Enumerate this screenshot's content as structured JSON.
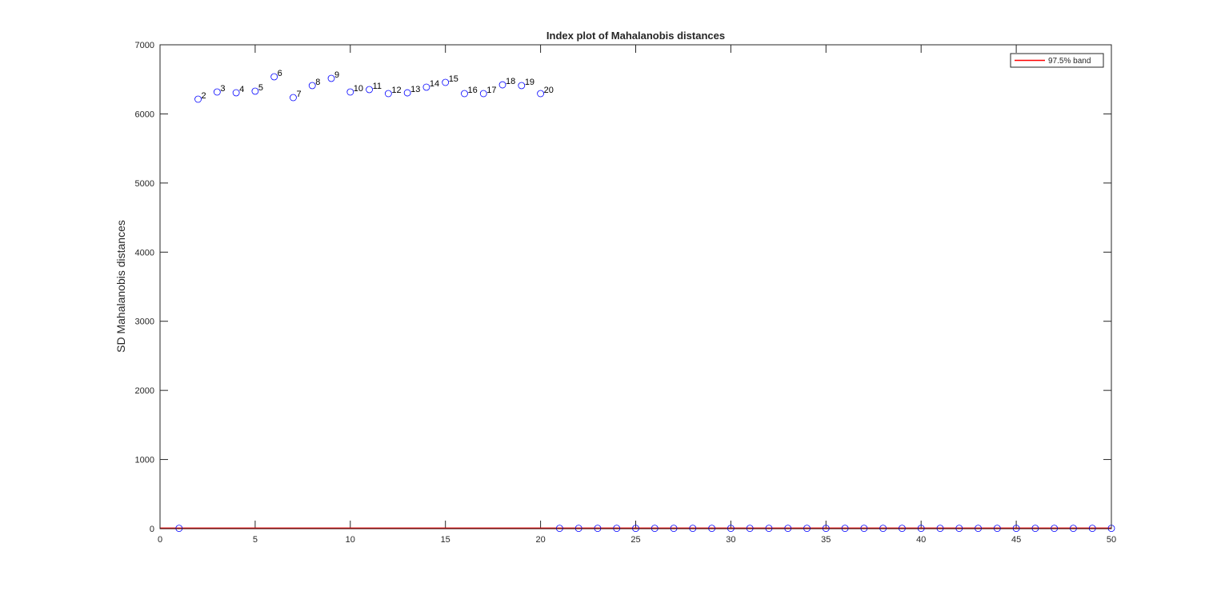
{
  "chart_data": {
    "type": "scatter",
    "title": "Index plot of Mahalanobis distances",
    "xlabel": "",
    "ylabel": "SD Mahalanobis distances",
    "xlim": [
      0,
      50
    ],
    "ylim": [
      0,
      7000
    ],
    "xticks": [
      0,
      5,
      10,
      15,
      20,
      25,
      30,
      35,
      40,
      45,
      50
    ],
    "yticks": [
      0,
      1000,
      2000,
      3000,
      4000,
      5000,
      6000,
      7000
    ],
    "grid": false,
    "legend": {
      "placement": "top-right",
      "entries": [
        "97.5% band"
      ]
    },
    "colors": {
      "points": "#0000ff",
      "band": "#ff0000",
      "axes": "#262626"
    },
    "band_value": 5,
    "points": {
      "x": [
        1,
        2,
        3,
        4,
        5,
        6,
        7,
        8,
        9,
        10,
        11,
        12,
        13,
        14,
        15,
        16,
        17,
        18,
        19,
        20,
        21,
        22,
        23,
        24,
        25,
        26,
        27,
        28,
        29,
        30,
        31,
        32,
        33,
        34,
        35,
        36,
        37,
        38,
        39,
        40,
        41,
        42,
        43,
        44,
        45,
        46,
        47,
        48,
        49,
        50
      ],
      "y": [
        4,
        6213,
        6317,
        6306,
        6329,
        6537,
        6236,
        6410,
        6514,
        6317,
        6352,
        6294,
        6305,
        6387,
        6456,
        6294,
        6294,
        6421,
        6410,
        6294,
        4,
        4,
        4,
        4,
        4,
        4,
        4,
        4,
        4,
        4,
        4,
        4,
        4,
        4,
        4,
        4,
        4,
        4,
        4,
        4,
        4,
        4,
        4,
        4,
        4,
        4,
        4,
        4,
        4,
        4
      ]
    },
    "point_labels": [
      "2",
      "3",
      "4",
      "5",
      "6",
      "7",
      "8",
      "9",
      "10",
      "11",
      "12",
      "13",
      "14",
      "15",
      "16",
      "17",
      "18",
      "19",
      "20"
    ],
    "labeled_indices": [
      2,
      3,
      4,
      5,
      6,
      7,
      8,
      9,
      10,
      11,
      12,
      13,
      14,
      15,
      16,
      17,
      18,
      19,
      20
    ]
  }
}
